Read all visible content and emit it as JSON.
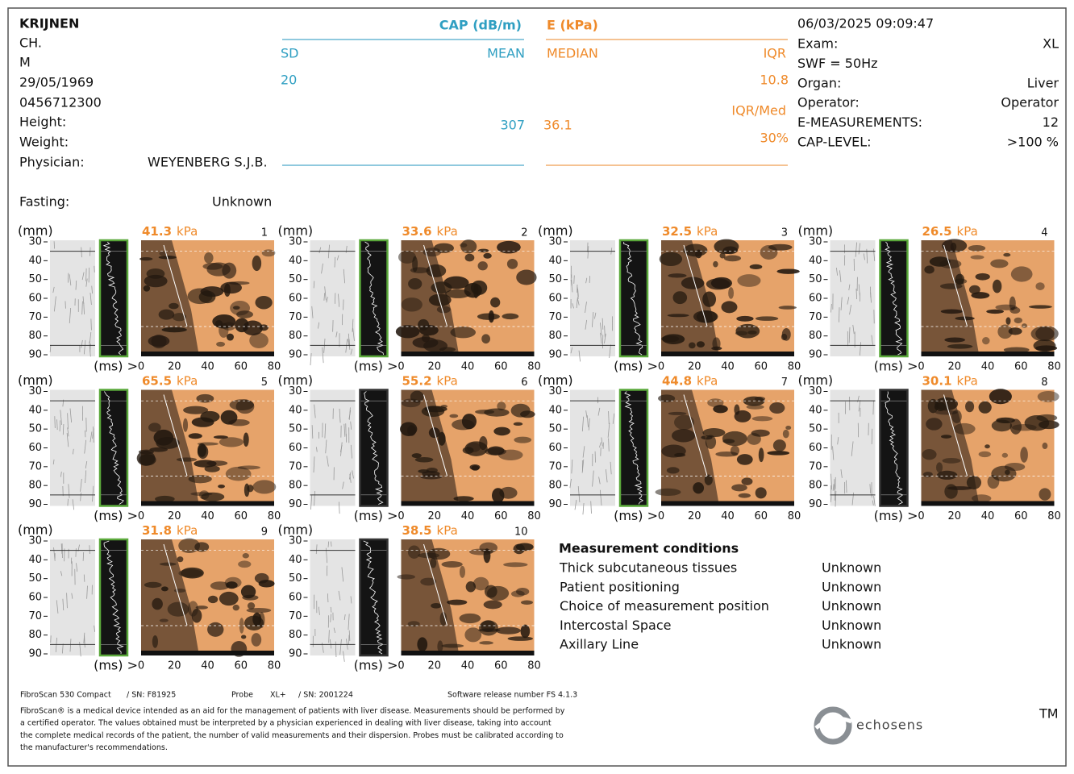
{
  "patient": {
    "name": "KRIJNEN",
    "first_name": "CH.",
    "sex": "M",
    "birth_date": "29/05/1969",
    "id": "0456712300",
    "height_label": "Height:",
    "weight_label": "Weight:",
    "physician_label": "Physician:",
    "physician": "WEYENBERG S.J.B.",
    "fasting_label": "Fasting:",
    "fasting": "Unknown"
  },
  "cap": {
    "title": "CAP (dB/m)",
    "sd_label": "SD",
    "sd": "20",
    "mean_label": "MEAN",
    "mean": "307"
  },
  "elasticity": {
    "title": "E (kPa)",
    "median_label": "MEDIAN",
    "median": "36.1",
    "iqr_label": "IQR",
    "iqr": "10.8",
    "iqr_med_label": "IQR/Med",
    "iqr_med": "30%"
  },
  "exam": {
    "date": "06/03/2025 09:09:47",
    "rows": [
      {
        "label": "Exam:",
        "value": "XL"
      },
      {
        "label": "SWF = 50Hz"
      },
      {
        "label": "Organ:",
        "value": "Liver"
      },
      {
        "label": "Operator:",
        "value": "Operator"
      },
      {
        "label": "E-MEASUREMENTS:",
        "value": "12"
      },
      {
        "label": "CAP-LEVEL:",
        "value": ">100 %"
      }
    ]
  },
  "measurements": {
    "unit": "kPa",
    "depth_unit": "(mm)",
    "depth_ticks": [
      "30",
      "40",
      "50",
      "60",
      "70",
      "80",
      "90"
    ],
    "time_unit": "(ms) >",
    "time_ticks": [
      "0",
      "20",
      "40",
      "60",
      "80"
    ],
    "items": [
      {
        "number": "1",
        "value": "41.3"
      },
      {
        "number": "2",
        "value": "33.6"
      },
      {
        "number": "3",
        "value": "32.5"
      },
      {
        "number": "4",
        "value": "26.5"
      },
      {
        "number": "5",
        "value": "65.5"
      },
      {
        "number": "6",
        "value": "55.2"
      },
      {
        "number": "7",
        "value": "44.8"
      },
      {
        "number": "8",
        "value": "30.1"
      },
      {
        "number": "9",
        "value": "31.8"
      },
      {
        "number": "10",
        "value": "38.5"
      }
    ]
  },
  "conditions": {
    "title": "Measurement conditions",
    "rows": [
      {
        "label": "Thick subcutaneous tissues",
        "value": "Unknown"
      },
      {
        "label": "Patient positioning",
        "value": "Unknown"
      },
      {
        "label": "Choice of measurement position",
        "value": "Unknown"
      },
      {
        "label": "Intercostal Space",
        "value": "Unknown"
      },
      {
        "label": "Axillary Line",
        "value": "Unknown"
      }
    ]
  },
  "footer": {
    "device": "FibroScan 530 Compact",
    "device_sn": "/ SN: F81925",
    "probe_label": "Probe",
    "probe": "XL+",
    "probe_sn": "/ SN: 2001224",
    "software": "Software release number FS 4.1.3",
    "disclaimer": [
      "FibroScan® is a medical device intended as an aid for the management of patients with liver disease. Measurements should be performed by",
      "a certified operator. The values obtained must be interpreted by a physician experienced in dealing with liver disease, taking into account",
      "the complete medical records of the patient, the number of valid measurements and their dispersion. Probes must be calibrated according to",
      "the manufacturer's recommendations."
    ]
  },
  "logo": {
    "name": "echosens",
    "trademark": "TM"
  }
}
